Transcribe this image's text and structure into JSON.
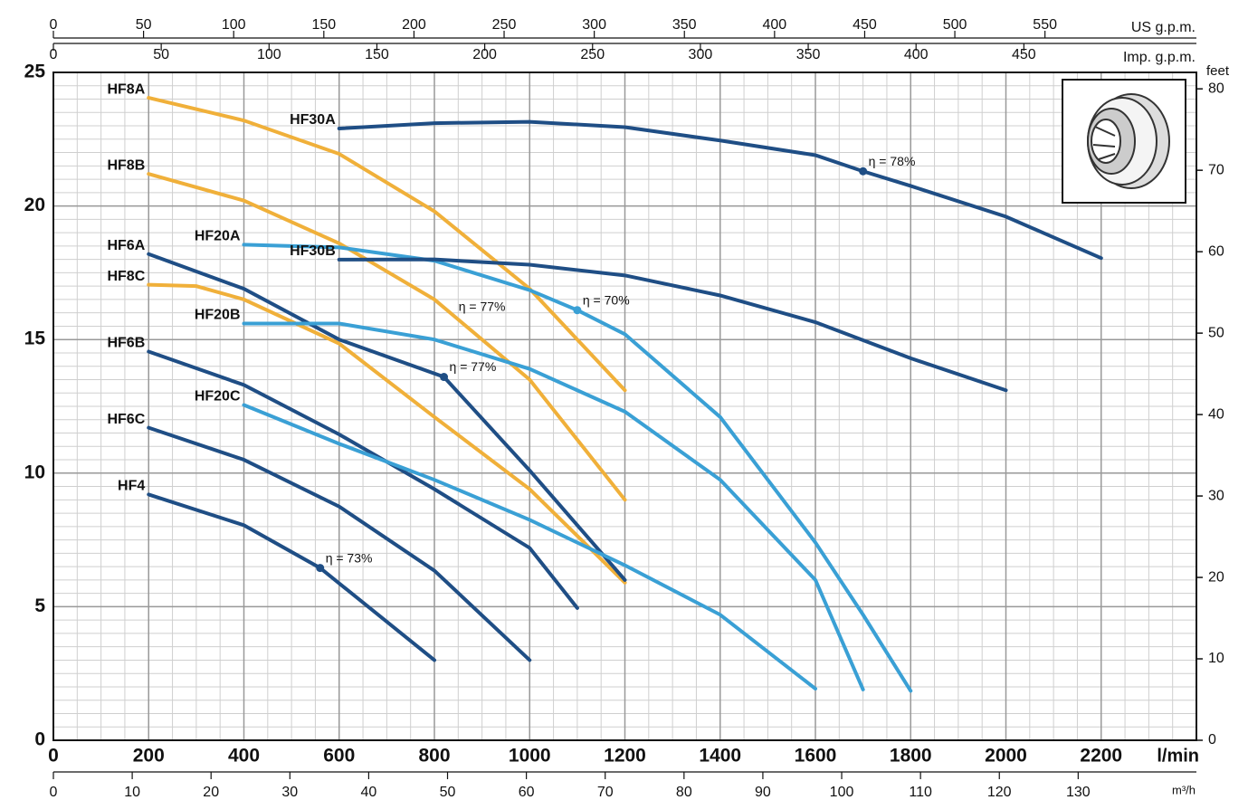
{
  "chart_data": {
    "type": "line",
    "x_label": "l/min",
    "y2_label": "feet",
    "xlim": [
      0,
      2400
    ],
    "xticks": [
      0,
      200,
      400,
      600,
      800,
      1000,
      1200,
      1400,
      1600,
      1800,
      2000,
      2200
    ],
    "ylim": [
      0,
      25
    ],
    "yticks": [
      0,
      5,
      10,
      15,
      20,
      25
    ],
    "y2lim": [
      0,
      82.02
    ],
    "y2ticks": [
      0,
      10,
      20,
      30,
      40,
      50,
      60,
      70,
      80
    ],
    "grid": true,
    "minor_x_step": 50,
    "minor_y_step": 0.5,
    "extra_x_axes": [
      {
        "label": "US g.p.m.",
        "xlim": [
          0,
          634
        ],
        "xticks": [
          0,
          50,
          100,
          150,
          200,
          250,
          300,
          350,
          400,
          450,
          500,
          550
        ]
      },
      {
        "label": "Imp. g.p.m.",
        "xlim": [
          0,
          530
        ],
        "xticks": [
          0,
          50,
          100,
          150,
          200,
          250,
          300,
          350,
          400,
          450
        ]
      },
      {
        "label": "m³/h",
        "xlim": [
          0,
          145
        ],
        "xticks": [
          0,
          10,
          20,
          30,
          40,
          50,
          60,
          70,
          80,
          90,
          100,
          110,
          120,
          130
        ]
      }
    ],
    "series": [
      {
        "name": "HF8A",
        "color": "#f0b03a",
        "x": [
          200,
          400,
          600,
          800,
          1000,
          1200
        ],
        "values": [
          24.05,
          23.2,
          21.95,
          19.8,
          16.9,
          13.1
        ]
      },
      {
        "name": "HF8B",
        "color": "#f0b03a",
        "x": [
          200,
          400,
          600,
          800,
          1000,
          1200
        ],
        "values": [
          21.2,
          20.2,
          18.6,
          16.5,
          13.5,
          9.0
        ]
      },
      {
        "name": "HF8C",
        "color": "#f0b03a",
        "x": [
          200,
          300,
          400,
          600,
          800,
          1000,
          1200
        ],
        "values": [
          17.05,
          17.0,
          16.5,
          14.85,
          12.1,
          9.4,
          5.9
        ]
      },
      {
        "name": "HF6A",
        "color": "#1f4e85",
        "x": [
          200,
          400,
          600,
          820,
          1000,
          1200
        ],
        "values": [
          18.2,
          16.9,
          15.0,
          13.6,
          10.1,
          6.0
        ]
      },
      {
        "name": "HF6B",
        "color": "#1f4e85",
        "x": [
          200,
          400,
          600,
          800,
          1000,
          1100
        ],
        "values": [
          14.55,
          13.3,
          11.45,
          9.4,
          7.2,
          4.95
        ]
      },
      {
        "name": "HF6C",
        "color": "#1f4e85",
        "x": [
          200,
          400,
          600,
          800,
          1000
        ],
        "values": [
          11.7,
          10.5,
          8.75,
          6.35,
          3.0
        ]
      },
      {
        "name": "HF4",
        "color": "#1f4e85",
        "x": [
          200,
          400,
          560,
          800
        ],
        "values": [
          9.2,
          8.05,
          6.45,
          3.0
        ]
      },
      {
        "name": "HF20A",
        "color": "#3aa0d5",
        "x": [
          400,
          600,
          800,
          1000,
          1100,
          1200,
          1400,
          1600,
          1700,
          1800
        ],
        "values": [
          18.55,
          18.45,
          17.95,
          16.85,
          16.1,
          15.2,
          12.1,
          7.4,
          4.7,
          1.85
        ]
      },
      {
        "name": "HF20B",
        "color": "#3aa0d5",
        "x": [
          400,
          600,
          800,
          1000,
          1200,
          1400,
          1600,
          1700
        ],
        "values": [
          15.6,
          15.6,
          15.0,
          13.9,
          12.3,
          9.75,
          6.0,
          1.9
        ]
      },
      {
        "name": "HF20C",
        "color": "#3aa0d5",
        "x": [
          400,
          600,
          800,
          1000,
          1200,
          1400,
          1600
        ],
        "values": [
          12.55,
          11.1,
          9.75,
          8.25,
          6.55,
          4.7,
          1.93
        ]
      },
      {
        "name": "HF30A",
        "color": "#1f4e85",
        "x": [
          600,
          800,
          1000,
          1200,
          1400,
          1600,
          1700,
          1800,
          2000,
          2200
        ],
        "values": [
          22.9,
          23.1,
          23.15,
          22.95,
          22.45,
          21.9,
          21.3,
          20.75,
          19.6,
          18.05
        ]
      },
      {
        "name": "HF30B",
        "color": "#1f4e85",
        "x": [
          600,
          800,
          1000,
          1200,
          1400,
          1600,
          1800,
          2000
        ],
        "values": [
          17.99,
          18.0,
          17.8,
          17.4,
          16.65,
          15.65,
          14.3,
          13.1
        ]
      }
    ],
    "annotations": [
      {
        "text": "η = 78%",
        "x": 1700,
        "y": 21.3,
        "color": "#1f4e85"
      },
      {
        "text": "η = 70%",
        "x": 1100,
        "y": 16.1,
        "color": "#3aa0d5"
      },
      {
        "text": "η = 77%",
        "x": 820,
        "y": 13.6,
        "color": "#1f4e85"
      },
      {
        "text": "η = 73%",
        "x": 560,
        "y": 6.45,
        "color": "#1f4e85"
      }
    ],
    "plain_annotations": [
      {
        "text": "η = 77%",
        "x": 900,
        "y": 16.2
      }
    ]
  }
}
